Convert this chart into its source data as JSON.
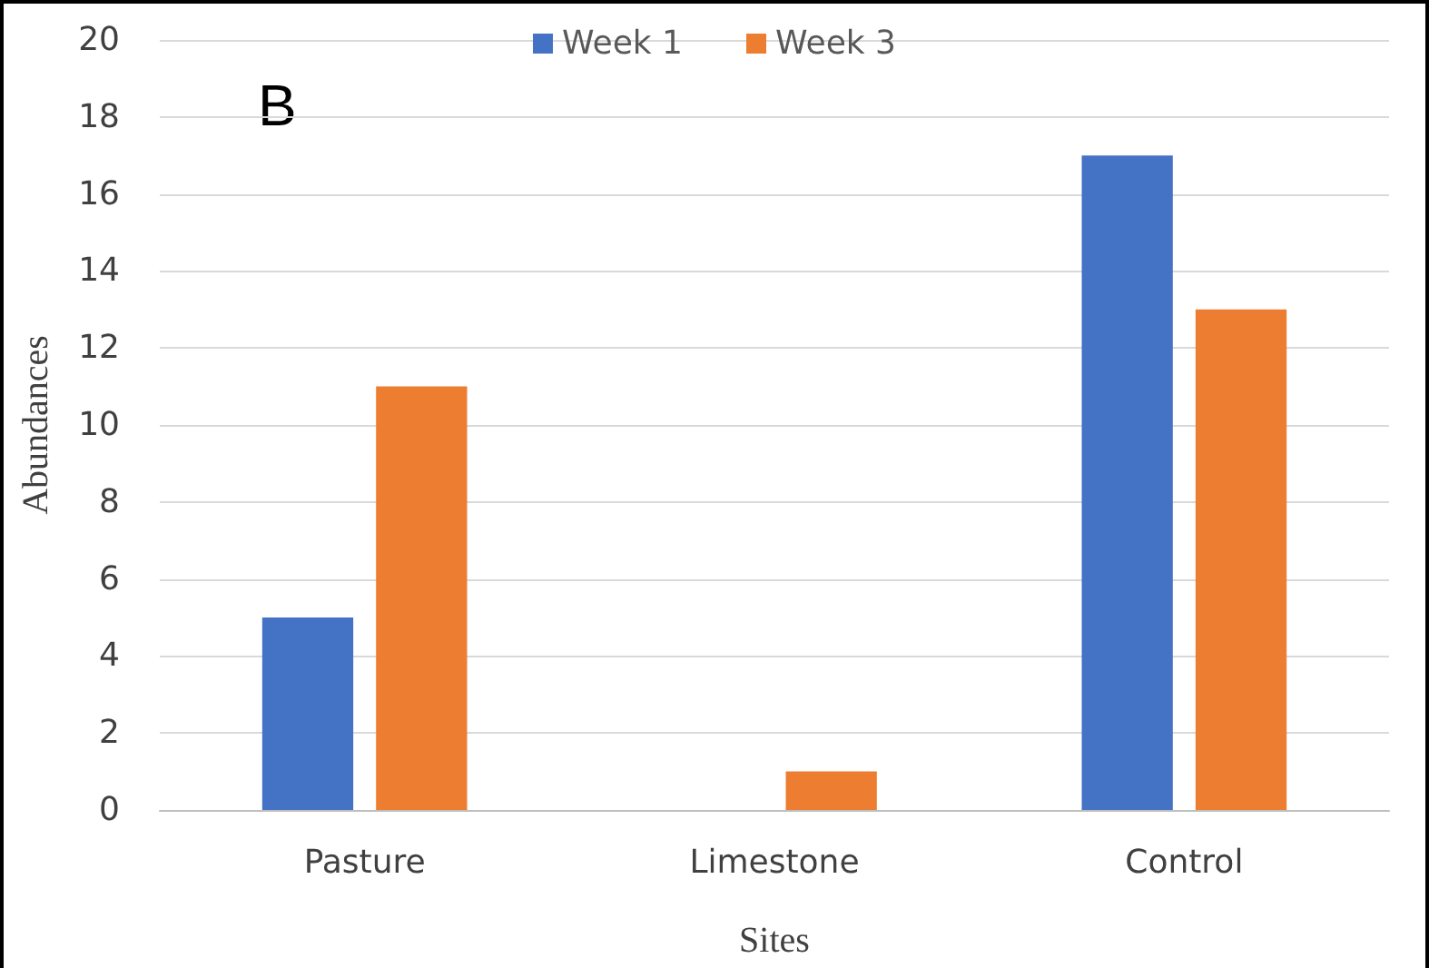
{
  "chart_data": {
    "type": "bar",
    "xlabel": "Sites",
    "ylabel": "Abundances",
    "annotations": [
      "B"
    ],
    "categories": [
      "Pasture",
      "Limestone",
      "Control"
    ],
    "series": [
      {
        "name": "Week 1",
        "color": "#4472c4",
        "values": [
          5,
          0,
          17
        ]
      },
      {
        "name": "Week 3",
        "color": "#ed7d31",
        "values": [
          11,
          1,
          13
        ]
      }
    ],
    "ylim": [
      0,
      20
    ],
    "yticks": [
      0,
      2,
      4,
      6,
      8,
      10,
      12,
      14,
      16,
      18,
      20
    ],
    "grid": "y",
    "legend": "top"
  }
}
